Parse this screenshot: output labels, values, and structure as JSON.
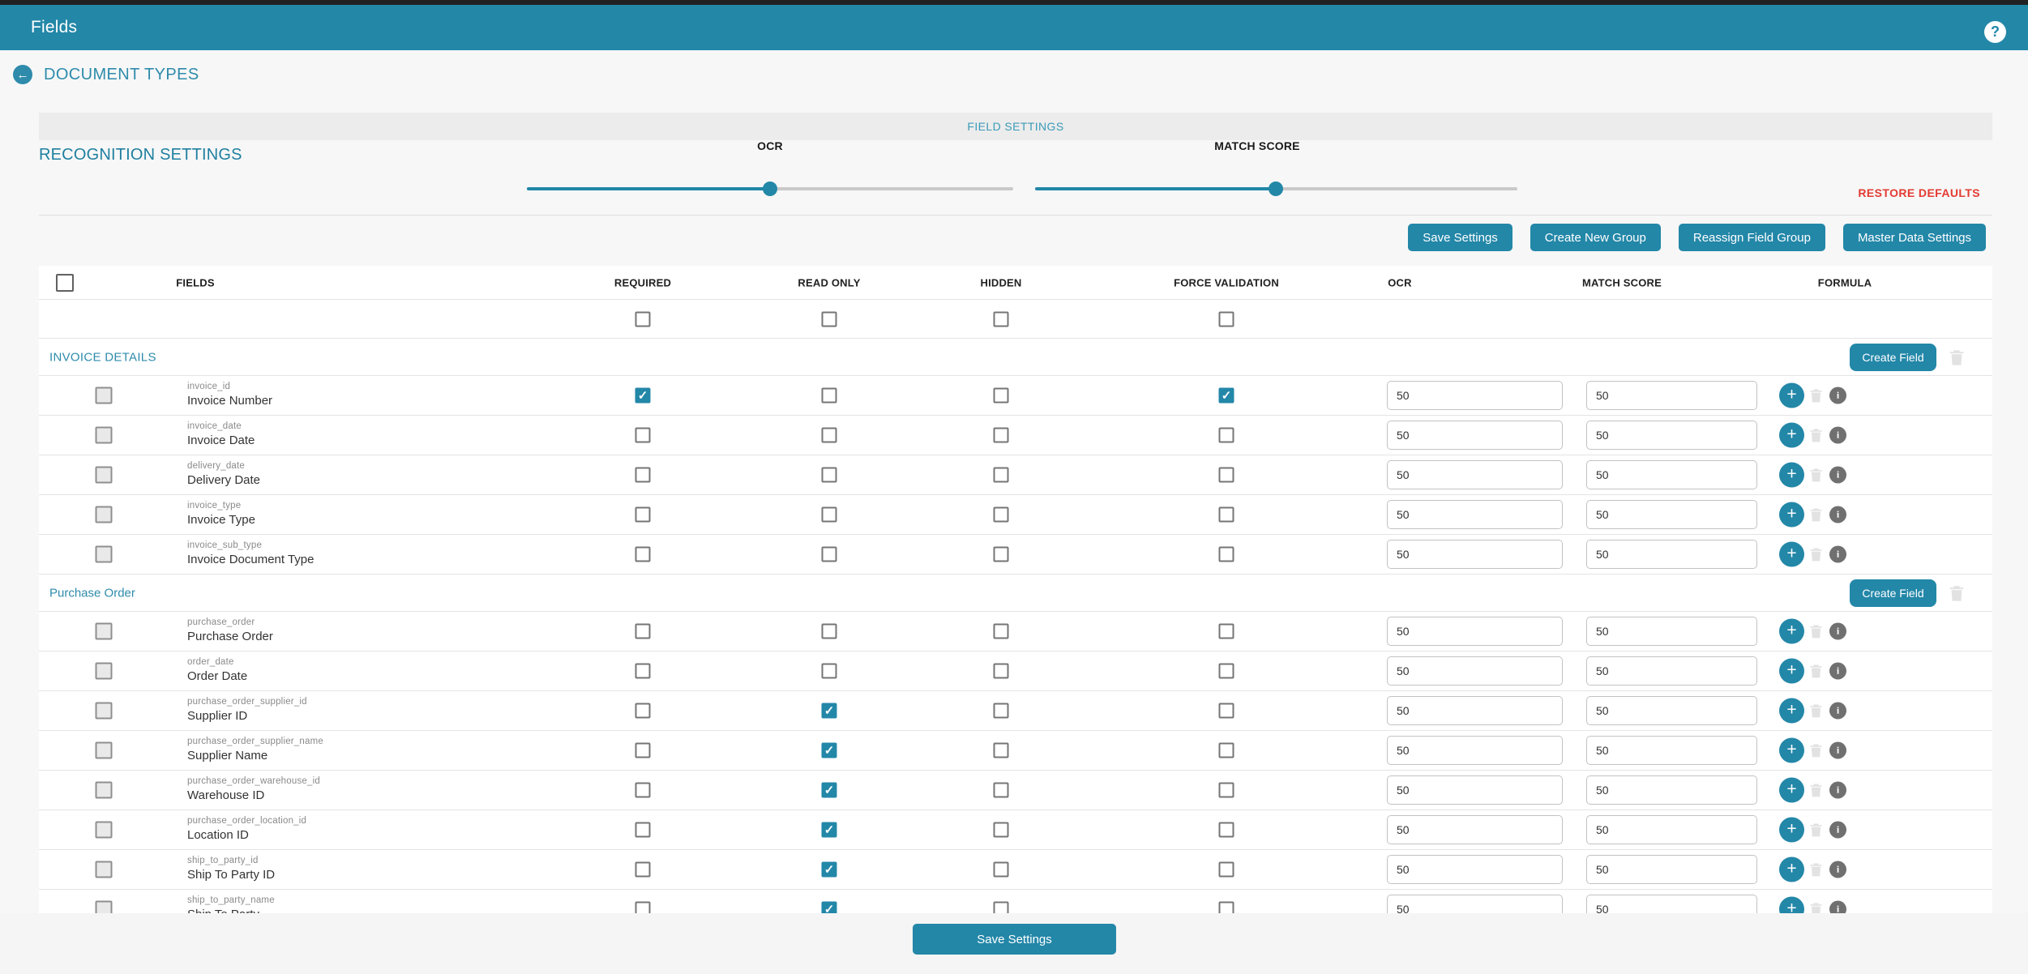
{
  "app_bar": {
    "title": "Fields"
  },
  "nav": {
    "back_label": "DOCUMENT TYPES"
  },
  "settings": {
    "banner": "FIELD SETTINGS",
    "recognition_title": "RECOGNITION SETTINGS",
    "restore_defaults": "RESTORE DEFAULTS",
    "sliders": [
      {
        "label": "OCR",
        "value": 50
      },
      {
        "label": "MATCH SCORE",
        "value": 50
      }
    ]
  },
  "actions": {
    "save_settings": "Save Settings",
    "create_new_group": "Create New Group",
    "reassign_field_group": "Reassign Field Group",
    "master_data_settings": "Master Data Settings"
  },
  "table": {
    "columns": {
      "fields": "FIELDS",
      "required": "REQUIRED",
      "read_only": "READ ONLY",
      "hidden": "HIDDEN",
      "force_validation": "FORCE VALIDATION",
      "ocr": "OCR",
      "match_score": "MATCH SCORE",
      "formula": "FORMULA"
    },
    "create_field_label": "Create Field",
    "groups": [
      {
        "name": "INVOICE DETAILS",
        "fields": [
          {
            "key": "invoice_id",
            "label": "Invoice Number",
            "required": true,
            "read_only": false,
            "hidden": false,
            "force_validation": true,
            "ocr": "50",
            "match_score": "50"
          },
          {
            "key": "invoice_date",
            "label": "Invoice Date",
            "required": false,
            "read_only": false,
            "hidden": false,
            "force_validation": false,
            "ocr": "50",
            "match_score": "50"
          },
          {
            "key": "delivery_date",
            "label": "Delivery Date",
            "required": false,
            "read_only": false,
            "hidden": false,
            "force_validation": false,
            "ocr": "50",
            "match_score": "50"
          },
          {
            "key": "invoice_type",
            "label": "Invoice Type",
            "required": false,
            "read_only": false,
            "hidden": false,
            "force_validation": false,
            "ocr": "50",
            "match_score": "50"
          },
          {
            "key": "invoice_sub_type",
            "label": "Invoice Document Type",
            "required": false,
            "read_only": false,
            "hidden": false,
            "force_validation": false,
            "ocr": "50",
            "match_score": "50"
          }
        ]
      },
      {
        "name": "Purchase Order",
        "fields": [
          {
            "key": "purchase_order",
            "label": "Purchase Order",
            "required": false,
            "read_only": false,
            "hidden": false,
            "force_validation": false,
            "ocr": "50",
            "match_score": "50"
          },
          {
            "key": "order_date",
            "label": "Order Date",
            "required": false,
            "read_only": false,
            "hidden": false,
            "force_validation": false,
            "ocr": "50",
            "match_score": "50"
          },
          {
            "key": "purchase_order_supplier_id",
            "label": "Supplier ID",
            "required": false,
            "read_only": true,
            "hidden": false,
            "force_validation": false,
            "ocr": "50",
            "match_score": "50"
          },
          {
            "key": "purchase_order_supplier_name",
            "label": "Supplier Name",
            "required": false,
            "read_only": true,
            "hidden": false,
            "force_validation": false,
            "ocr": "50",
            "match_score": "50"
          },
          {
            "key": "purchase_order_warehouse_id",
            "label": "Warehouse ID",
            "required": false,
            "read_only": true,
            "hidden": false,
            "force_validation": false,
            "ocr": "50",
            "match_score": "50"
          },
          {
            "key": "purchase_order_location_id",
            "label": "Location ID",
            "required": false,
            "read_only": true,
            "hidden": false,
            "force_validation": false,
            "ocr": "50",
            "match_score": "50"
          },
          {
            "key": "ship_to_party_id",
            "label": "Ship To Party ID",
            "required": false,
            "read_only": true,
            "hidden": false,
            "force_validation": false,
            "ocr": "50",
            "match_score": "50"
          },
          {
            "key": "ship_to_party_name",
            "label": "Ship To Party",
            "required": false,
            "read_only": true,
            "hidden": false,
            "force_validation": false,
            "ocr": "50",
            "match_score": "50"
          }
        ]
      }
    ]
  },
  "footer": {
    "save_settings": "Save Settings"
  },
  "colors": {
    "accent": "#2387a8",
    "danger": "#e33a31",
    "banner_bg": "#ececec"
  }
}
